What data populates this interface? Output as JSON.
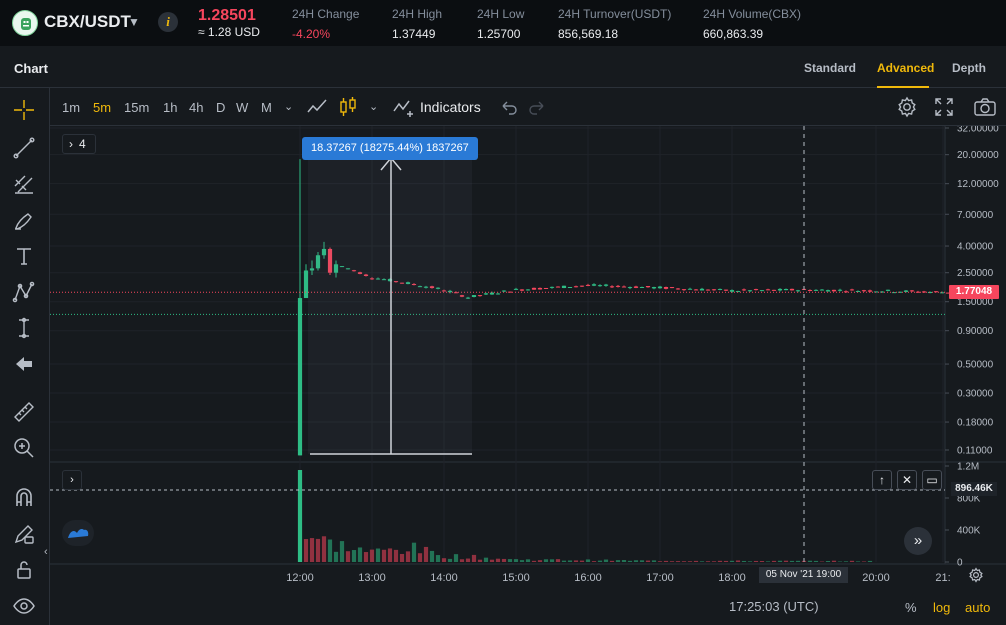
{
  "ticker": {
    "pair": "CBX/USDT",
    "info_icon": "i",
    "last_price": "1.28501",
    "usd_price": "≈ 1.28 USD",
    "stats": [
      {
        "label": "24H Change",
        "value": "-4.20%",
        "negative": true
      },
      {
        "label": "24H High",
        "value": "1.37449",
        "negative": false
      },
      {
        "label": "24H Low",
        "value": "1.25700",
        "negative": false
      },
      {
        "label": "24H Turnover(USDT)",
        "value": "856,569.18",
        "negative": false
      },
      {
        "label": "24H Volume(CBX)",
        "value": "660,863.39",
        "negative": false
      }
    ]
  },
  "section": {
    "title": "Chart",
    "tabs": [
      "Standard",
      "Advanced",
      "Depth"
    ],
    "active_tab": "Advanced"
  },
  "toolbar": {
    "timeframes": [
      "1m",
      "5m",
      "15m",
      "1h",
      "4h",
      "D",
      "W",
      "M"
    ],
    "active_timeframe": "5m",
    "indicators_label": "Indicators"
  },
  "chart": {
    "pane_counter": "4",
    "measure_tooltip": "18.37267 (18275.44%) 1837267",
    "current_price": "1.77048",
    "volume_marker": "896.46K",
    "crosshair_time": "05 Nov '21   19:00",
    "clock": "17:25:03 (UTC)",
    "scale_options": [
      "%",
      "log",
      "auto"
    ],
    "active_scale": "auto",
    "price_ticks": [
      {
        "label": "32.00000",
        "value": 32
      },
      {
        "label": "20.00000",
        "value": 20
      },
      {
        "label": "12.00000",
        "value": 12
      },
      {
        "label": "7.00000",
        "value": 7
      },
      {
        "label": "4.00000",
        "value": 4
      },
      {
        "label": "2.50000",
        "value": 2.5
      },
      {
        "label": "1.50000",
        "value": 1.5
      },
      {
        "label": "0.90000",
        "value": 0.9
      },
      {
        "label": "0.50000",
        "value": 0.5
      },
      {
        "label": "0.30000",
        "value": 0.3
      },
      {
        "label": "0.18000",
        "value": 0.18
      },
      {
        "label": "0.11000",
        "value": 0.11
      }
    ],
    "volume_ticks": [
      {
        "label": "1.2M",
        "value": 1200000
      },
      {
        "label": "800K",
        "value": 800000
      },
      {
        "label": "400K",
        "value": 400000
      },
      {
        "label": "0",
        "value": 0
      }
    ],
    "time_labels": [
      "12:00",
      "13:00",
      "14:00",
      "15:00",
      "16:00",
      "17:00",
      "18:00",
      "20:00",
      "21:"
    ],
    "colors": {
      "up": "#2ebd85",
      "down": "#f6465d",
      "accent": "#f0b90b",
      "measure": "#2a7ad6"
    }
  },
  "chart_data": {
    "type": "candlestick",
    "title": "",
    "xlabel": "",
    "ylabel": "",
    "y_scale": "log",
    "ylim": [
      0.1,
      32
    ],
    "x_range": [
      "11:00",
      "21:10"
    ],
    "interval": "5m",
    "grid": true,
    "candles_summary": [
      {
        "t": "12:00",
        "o": 0.1,
        "h": 18.5,
        "l": 0.1,
        "c": 1.6
      },
      {
        "t": "12:05",
        "o": 1.6,
        "h": 2.9,
        "l": 1.6,
        "c": 2.6
      },
      {
        "t": "12:10",
        "o": 2.6,
        "h": 3.1,
        "l": 2.4,
        "c": 2.7
      },
      {
        "t": "12:15",
        "o": 2.7,
        "h": 3.6,
        "l": 2.6,
        "c": 3.4
      },
      {
        "t": "12:20",
        "o": 3.4,
        "h": 4.3,
        "l": 3.2,
        "c": 3.8
      },
      {
        "t": "12:25",
        "o": 3.8,
        "h": 3.9,
        "l": 2.4,
        "c": 2.5
      },
      {
        "t": "12:30",
        "o": 2.5,
        "h": 3.1,
        "l": 2.3,
        "c": 2.9
      },
      {
        "t": "13:00",
        "o": 2.4,
        "h": 2.5,
        "l": 2.2,
        "c": 2.3
      },
      {
        "t": "14:00",
        "o": 1.9,
        "h": 2.0,
        "l": 1.8,
        "c": 1.85
      },
      {
        "t": "14:20",
        "o": 1.7,
        "h": 1.8,
        "l": 1.6,
        "c": 1.62
      },
      {
        "t": "15:00",
        "o": 1.8,
        "h": 1.9,
        "l": 1.75,
        "c": 1.85
      },
      {
        "t": "16:00",
        "o": 1.95,
        "h": 2.05,
        "l": 1.9,
        "c": 2.0
      },
      {
        "t": "17:00",
        "o": 2.0,
        "h": 2.05,
        "l": 1.9,
        "c": 1.92
      },
      {
        "t": "18:00",
        "o": 1.85,
        "h": 1.9,
        "l": 1.8,
        "c": 1.82
      },
      {
        "t": "19:00",
        "o": 1.83,
        "h": 1.9,
        "l": 1.8,
        "c": 1.85
      },
      {
        "t": "20:00",
        "o": 1.86,
        "h": 1.9,
        "l": 1.8,
        "c": 1.82
      },
      {
        "t": "21:00",
        "o": 1.8,
        "h": 1.82,
        "l": 1.76,
        "c": 1.77
      }
    ],
    "volume": {
      "ylim": [
        0,
        1200000
      ],
      "summary": [
        {
          "t": "12:00",
          "v": 1150000
        },
        {
          "t": "12:05",
          "v": 350000
        },
        {
          "t": "12:10",
          "v": 300000
        },
        {
          "t": "12:20",
          "v": 250000
        },
        {
          "t": "13:00",
          "v": 120000
        },
        {
          "t": "13:30",
          "v": 180000
        },
        {
          "t": "14:00",
          "v": 80000
        },
        {
          "t": "15:00",
          "v": 30000
        },
        {
          "t": "17:00",
          "v": 15000
        },
        {
          "t": "20:00",
          "v": 10000
        }
      ]
    }
  }
}
